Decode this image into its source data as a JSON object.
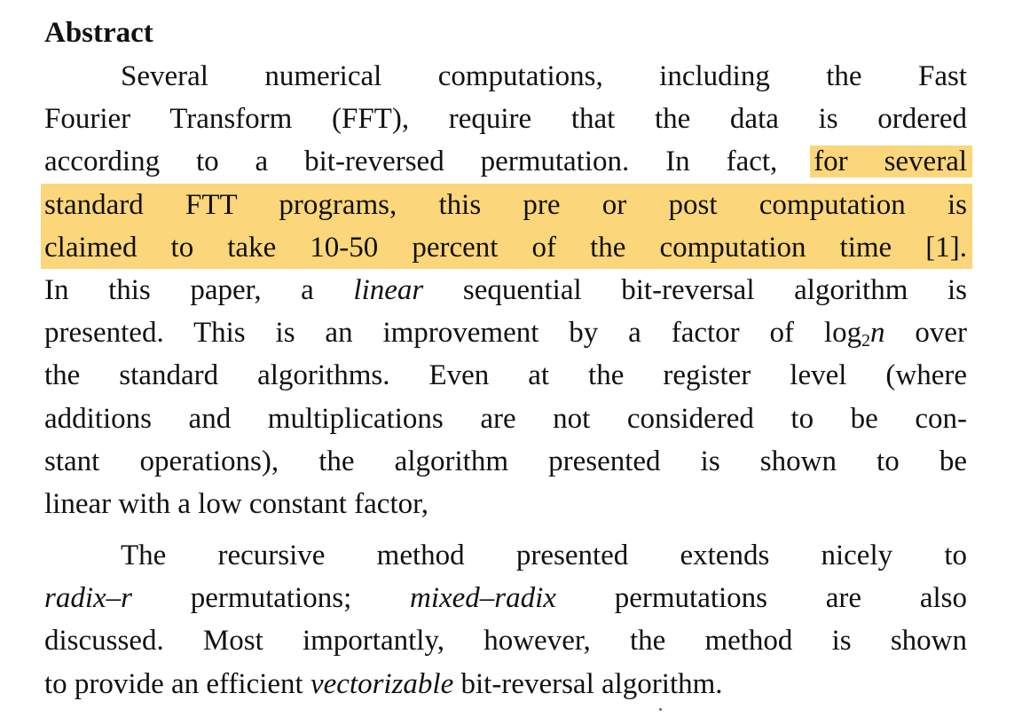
{
  "abstract": {
    "heading": "Abstract",
    "p1": {
      "l1": "Several numerical computations, including the Fast",
      "l2": "Fourier Transform (FFT), require that the data is ordered",
      "l3_plain": "according to a bit-reversed permutation. In fact, ",
      "l3_hl": "for several",
      "l4_hl": "standard FTT programs, this pre or post computation is",
      "l5_hl": "claimed to take 10-50 percent of the computation time [1].",
      "l6_a": "In this paper, a ",
      "l6_em": "linear",
      "l6_b": " sequential bit-reversal algorithm is",
      "l7_a": "presented. This is an improvement by a factor of log",
      "l7_sub": "2",
      "l7_em": "n",
      "l7_b": " over",
      "l8": "the standard algorithms. Even at the register level (where",
      "l9": "additions and multiplications are not considered to be con-",
      "l10": "stant operations), the algorithm presented is shown to be",
      "l11": "linear with a low constant factor,"
    },
    "p2": {
      "l1": "The recursive method presented extends nicely to",
      "l2_em1": "radix–r",
      "l2_a": " permutations; ",
      "l2_em2": "mixed–radix",
      "l2_b": " permutations are also",
      "l3": "discussed. Most importantly, however, the method is shown",
      "l4_a": "to provide an efficient ",
      "l4_em": "vectorizable",
      "l4_b": " bit-reversal algorithm."
    }
  },
  "colors": {
    "highlight": "#fbd67a",
    "text": "#111111"
  }
}
